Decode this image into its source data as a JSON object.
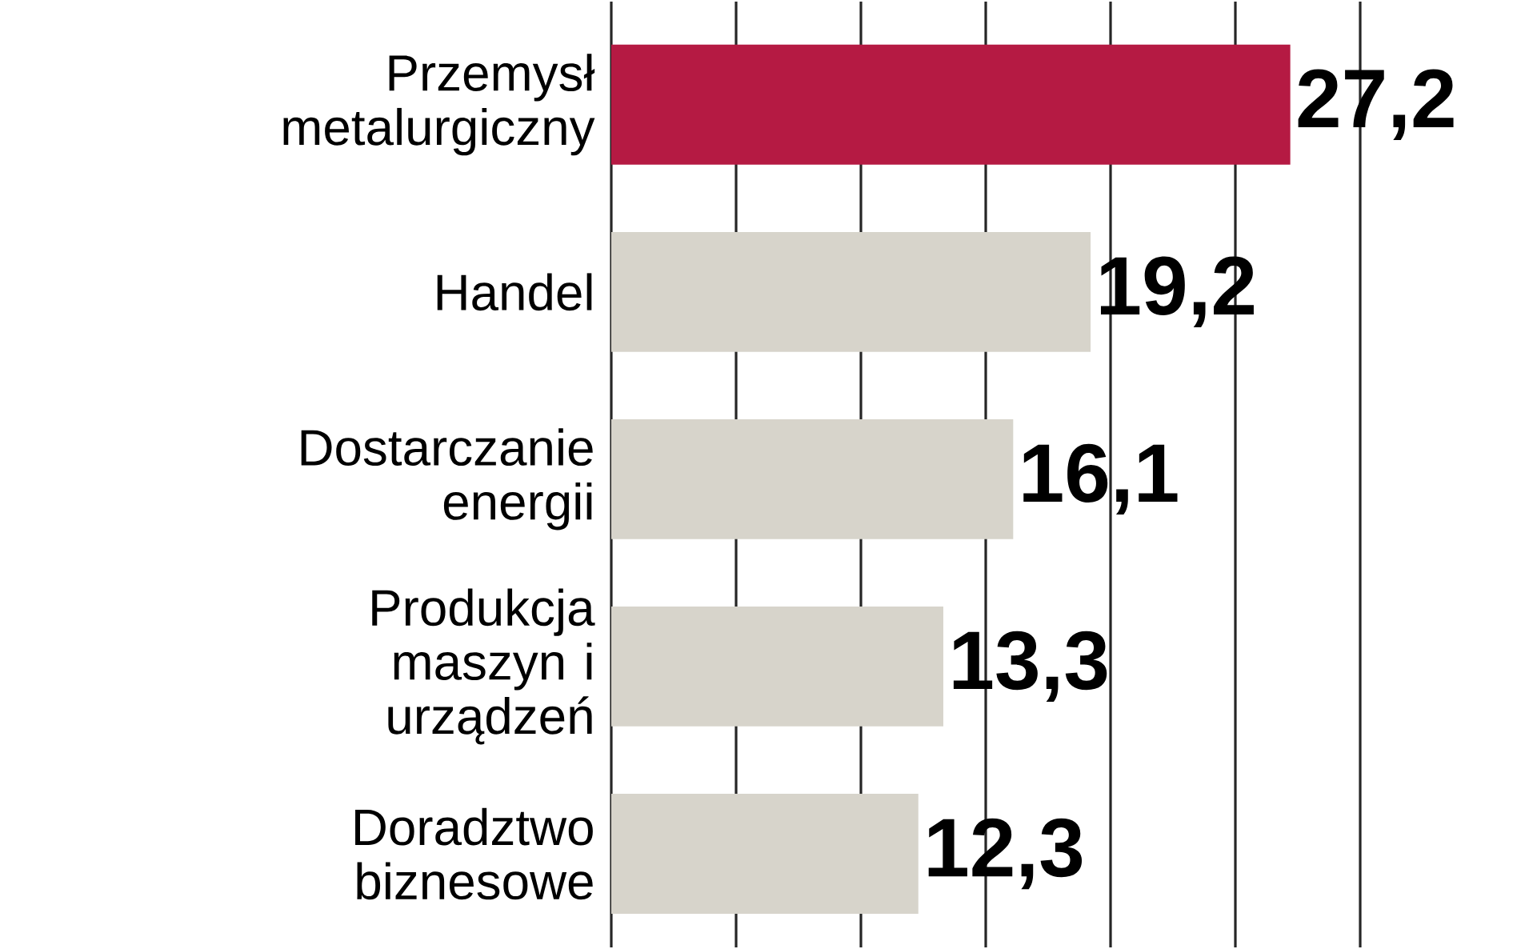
{
  "chart_data": {
    "type": "bar",
    "orientation": "horizontal",
    "categories": [
      "Przemysł metalurgiczny",
      "Handel",
      "Dostarczanie energii",
      "Produkcja maszyn i urządzeń",
      "Doradztwo biznesowe"
    ],
    "values": [
      27.2,
      19.2,
      16.1,
      13.3,
      12.3
    ],
    "colors": [
      "#b51a43",
      "#d7d4cb",
      "#d7d4cb",
      "#d7d4cb",
      "#d7d4cb"
    ],
    "value_labels": [
      "27,2",
      "19,2",
      "16,1",
      "13,3",
      "12,3"
    ],
    "xlim": [
      0,
      30
    ],
    "xticks": [
      {
        "value": 0,
        "label": null
      },
      {
        "value": 5,
        "label": null
      },
      {
        "value": 10,
        "label": null
      },
      {
        "value": 15,
        "label": null
      },
      {
        "value": 20,
        "label": null
      },
      {
        "value": 25,
        "label": null
      },
      {
        "value": 30,
        "label": null
      }
    ],
    "grid": "x",
    "tick_labels": "y"
  }
}
